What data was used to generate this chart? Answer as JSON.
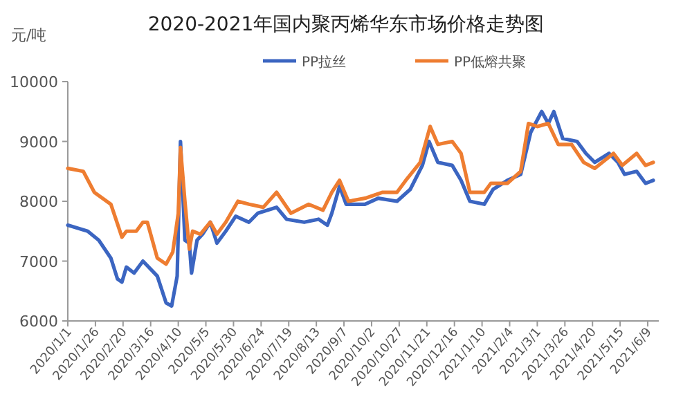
{
  "chart_data": {
    "type": "line",
    "title": "2020-2021年国内聚丙烯华东市场价格走势图",
    "ylabel": "元/吨",
    "legend": "top",
    "grid": false,
    "marker": "none",
    "line_style": "solid",
    "xlim": [
      "2020-01-01",
      "2021-06-19"
    ],
    "xticks": [
      {
        "value": "2020-01-01",
        "label": "2020/1/1"
      },
      {
        "value": "2020-01-26",
        "label": "2020/1/26"
      },
      {
        "value": "2020-02-20",
        "label": "2020/2/20"
      },
      {
        "value": "2020-03-16",
        "label": "2020/3/16"
      },
      {
        "value": "2020-04-10",
        "label": "2020/4/10"
      },
      {
        "value": "2020-05-05",
        "label": "2020/5/5"
      },
      {
        "value": "2020-05-30",
        "label": "2020/5/30"
      },
      {
        "value": "2020-06-24",
        "label": "2020/6/24"
      },
      {
        "value": "2020-07-19",
        "label": "2020/7/19"
      },
      {
        "value": "2020-08-13",
        "label": "2020/8/13"
      },
      {
        "value": "2020-09-07",
        "label": "2020/9/7"
      },
      {
        "value": "2020-10-02",
        "label": "2020/10/2"
      },
      {
        "value": "2020-10-27",
        "label": "2020/10/27"
      },
      {
        "value": "2020-11-21",
        "label": "2020/11/21"
      },
      {
        "value": "2020-12-16",
        "label": "2020/12/16"
      },
      {
        "value": "2021-01-10",
        "label": "2021/1/10"
      },
      {
        "value": "2021-02-04",
        "label": "2021/2/4"
      },
      {
        "value": "2021-03-01",
        "label": "2021/3/1"
      },
      {
        "value": "2021-03-26",
        "label": "2021/3/26"
      },
      {
        "value": "2021-04-20",
        "label": "2021/4/20"
      },
      {
        "value": "2021-05-15",
        "label": "2021/5/15"
      },
      {
        "value": "2021-06-09",
        "label": "2021/6/9"
      }
    ],
    "ylim": [
      6000,
      10000
    ],
    "yticks": [
      6000,
      7000,
      8000,
      9000,
      10000
    ],
    "series": [
      {
        "name": "PP拉丝",
        "color": "#3b65c1",
        "x": [
          "2020-01-01",
          "2020-01-19",
          "2020-01-29",
          "2020-02-09",
          "2020-02-15",
          "2020-02-19",
          "2020-02-23",
          "2020-03-01",
          "2020-03-09",
          "2020-03-22",
          "2020-03-30",
          "2020-04-04",
          "2020-04-09",
          "2020-04-12",
          "2020-04-16",
          "2020-04-20",
          "2020-04-22",
          "2020-04-27",
          "2020-05-02",
          "2020-05-09",
          "2020-05-15",
          "2020-05-23",
          "2020-06-01",
          "2020-06-13",
          "2020-06-21",
          "2020-07-08",
          "2020-07-17",
          "2020-08-02",
          "2020-08-15",
          "2020-08-23",
          "2020-08-27",
          "2020-09-03",
          "2020-09-09",
          "2020-09-26",
          "2020-10-08",
          "2020-10-25",
          "2020-11-06",
          "2020-11-17",
          "2020-11-23",
          "2020-12-01",
          "2020-12-14",
          "2020-12-22",
          "2020-12-30",
          "2021-01-12",
          "2021-01-20",
          "2021-02-02",
          "2021-02-14",
          "2021-02-23",
          "2021-03-05",
          "2021-03-11",
          "2021-03-16",
          "2021-03-24",
          "2021-04-06",
          "2021-04-14",
          "2021-04-22",
          "2021-05-05",
          "2021-05-13",
          "2021-05-19",
          "2021-05-30",
          "2021-06-07",
          "2021-06-14"
        ],
        "values": [
          7600,
          7500,
          7350,
          7050,
          6700,
          6650,
          6900,
          6800,
          7000,
          6750,
          6300,
          6250,
          6750,
          9000,
          7350,
          7300,
          6800,
          7350,
          7450,
          7650,
          7300,
          7500,
          7750,
          7650,
          7800,
          7900,
          7700,
          7650,
          7700,
          7600,
          7800,
          8250,
          7950,
          7950,
          8050,
          8000,
          8200,
          8600,
          9000,
          8650,
          8600,
          8350,
          8000,
          7950,
          8200,
          8350,
          8450,
          9150,
          9500,
          9300,
          9500,
          9050,
          9000,
          8800,
          8650,
          8800,
          8650,
          8450,
          8500,
          8300,
          8350
        ]
      },
      {
        "name": "PP低熔共聚",
        "color": "#ee7d31",
        "x": [
          "2020-01-01",
          "2020-01-15",
          "2020-01-25",
          "2020-02-09",
          "2020-02-19",
          "2020-02-23",
          "2020-03-03",
          "2020-03-09",
          "2020-03-13",
          "2020-03-22",
          "2020-03-30",
          "2020-04-05",
          "2020-04-10",
          "2020-04-12",
          "2020-04-16",
          "2020-04-20",
          "2020-04-23",
          "2020-04-30",
          "2020-05-09",
          "2020-05-15",
          "2020-05-23",
          "2020-06-03",
          "2020-06-13",
          "2020-06-26",
          "2020-07-08",
          "2020-07-21",
          "2020-08-06",
          "2020-08-19",
          "2020-08-27",
          "2020-09-03",
          "2020-09-11",
          "2020-09-26",
          "2020-10-12",
          "2020-10-25",
          "2020-11-02",
          "2020-11-15",
          "2020-11-24",
          "2020-12-01",
          "2020-12-14",
          "2020-12-22",
          "2020-12-30",
          "2021-01-12",
          "2021-01-18",
          "2021-02-02",
          "2021-02-14",
          "2021-02-21",
          "2021-03-01",
          "2021-03-11",
          "2021-03-20",
          "2021-04-01",
          "2021-04-12",
          "2021-04-22",
          "2021-05-09",
          "2021-05-17",
          "2021-05-30",
          "2021-06-07",
          "2021-06-14"
        ],
        "values": [
          8550,
          8500,
          8150,
          7950,
          7400,
          7500,
          7500,
          7650,
          7650,
          7050,
          6950,
          7150,
          7800,
          8900,
          8000,
          7200,
          7500,
          7450,
          7650,
          7450,
          7650,
          8000,
          7950,
          7900,
          8150,
          7800,
          7950,
          7850,
          8150,
          8350,
          8000,
          8050,
          8150,
          8150,
          8350,
          8650,
          9250,
          8950,
          9000,
          8800,
          8150,
          8150,
          8300,
          8300,
          8500,
          9300,
          9250,
          9300,
          8950,
          8950,
          8650,
          8550,
          8800,
          8600,
          8800,
          8600,
          8650
        ]
      }
    ]
  }
}
